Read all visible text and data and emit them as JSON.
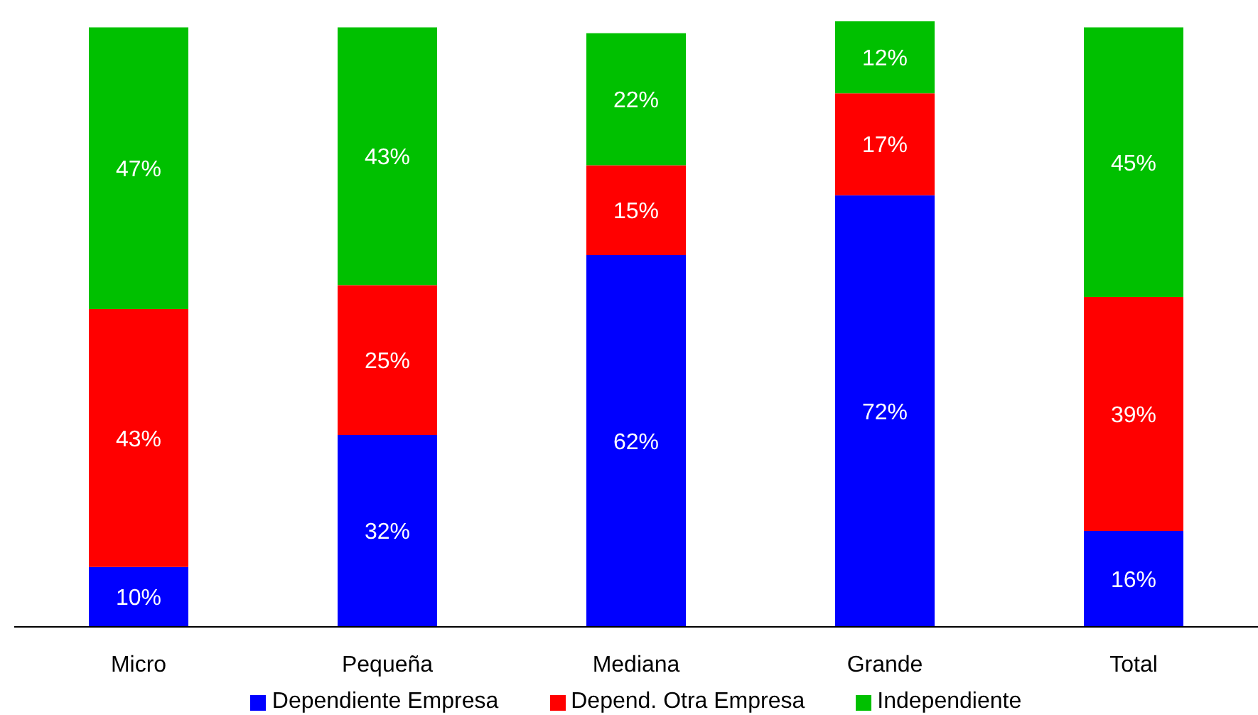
{
  "chart_data": {
    "type": "bar",
    "stacked": true,
    "categories": [
      "Micro",
      "Pequeña",
      "Mediana",
      "Grande",
      "Total"
    ],
    "series": [
      {
        "name": "Dependiente Empresa",
        "color": "#0000ff",
        "values": [
          10,
          32,
          62,
          72,
          16
        ],
        "value_labels": [
          "10%",
          "32%",
          "62%",
          "72%",
          "16%"
        ]
      },
      {
        "name": "Depend. Otra Empresa",
        "color": "#ff0000",
        "values": [
          43,
          25,
          15,
          17,
          39
        ],
        "value_labels": [
          "43%",
          "25%",
          "15%",
          "17%",
          "39%"
        ]
      },
      {
        "name": "Independiente",
        "color": "#00c000",
        "values": [
          47,
          43,
          22,
          12,
          45
        ],
        "value_labels": [
          "47%",
          "43%",
          "22%",
          "12%",
          "45%"
        ]
      }
    ],
    "legend": "bottom"
  }
}
